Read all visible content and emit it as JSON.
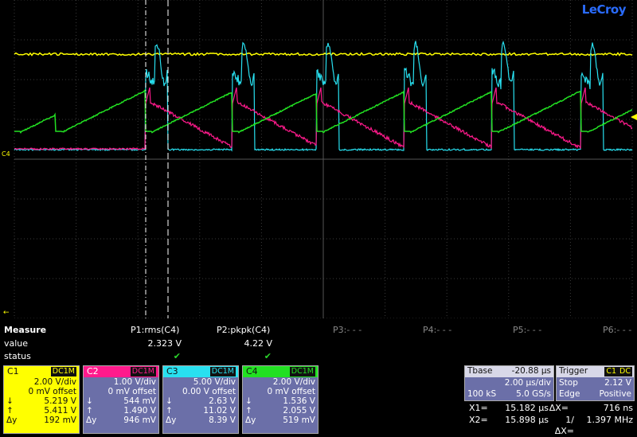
{
  "brand": "LeCroy",
  "measure": {
    "title": "Measure",
    "row_value": "value",
    "row_status": "status",
    "params": [
      {
        "label": "P1:rms(C4)",
        "value": "2.323 V",
        "status": "✔"
      },
      {
        "label": "P2:pkpk(C4)",
        "value": "4.22 V",
        "status": "✔"
      },
      {
        "label": "P3:- - -",
        "value": "",
        "status": ""
      },
      {
        "label": "P4:- - -",
        "value": "",
        "status": ""
      },
      {
        "label": "P5:- - -",
        "value": "",
        "status": ""
      },
      {
        "label": "P6:- - -",
        "value": "",
        "status": ""
      }
    ]
  },
  "channels": [
    {
      "name": "C1",
      "coupling": "DC1M",
      "vdiv": "2.00 V/div",
      "offset": "0 mV offset",
      "down": "5.219 V",
      "up": "5.411 V",
      "dy": "192 mV",
      "color": "#ffff00",
      "bg": "#ffff00"
    },
    {
      "name": "C2",
      "coupling": "DC1M",
      "vdiv": "1.00 V/div",
      "offset": "0 mV offset",
      "down": "544 mV",
      "up": "1.490 V",
      "dy": "946 mV",
      "color": "#ff1a8c",
      "bg": "#6b6fa8"
    },
    {
      "name": "C3",
      "coupling": "DC1M",
      "vdiv": "5.00 V/div",
      "offset": "0.00 V offset",
      "down": "2.63 V",
      "up": "11.02 V",
      "dy": "8.39 V",
      "color": "#28e0f0",
      "bg": "#6b6fa8"
    },
    {
      "name": "C4",
      "coupling": "DC1M",
      "vdiv": "2.00 V/div",
      "offset": "0 mV offset",
      "down": "1.536 V",
      "up": "2.055 V",
      "dy": "519 mV",
      "color": "#22e022",
      "bg": "#6b6fa8"
    }
  ],
  "timebase": {
    "title": "Tbase",
    "delay": "-20.88 µs",
    "tdiv": "2.00 µs/div",
    "samples": "100 kS",
    "rate": "5.0 GS/s"
  },
  "trigger": {
    "title": "Trigger",
    "ch": "C1",
    "coupling": "DC",
    "mode": "Stop",
    "level": "2.12 V",
    "type": "Edge",
    "slope": "Positive"
  },
  "cursors": {
    "x1_label": "X1=",
    "x1": "15.182 µs",
    "dx_label": "ΔX=",
    "dx": "716 ns",
    "x2_label": "X2=",
    "x2": "15.898 µs",
    "inv_label": "1/ΔX=",
    "inv": "1.397 MHz"
  },
  "ch_marker": "C4"
}
